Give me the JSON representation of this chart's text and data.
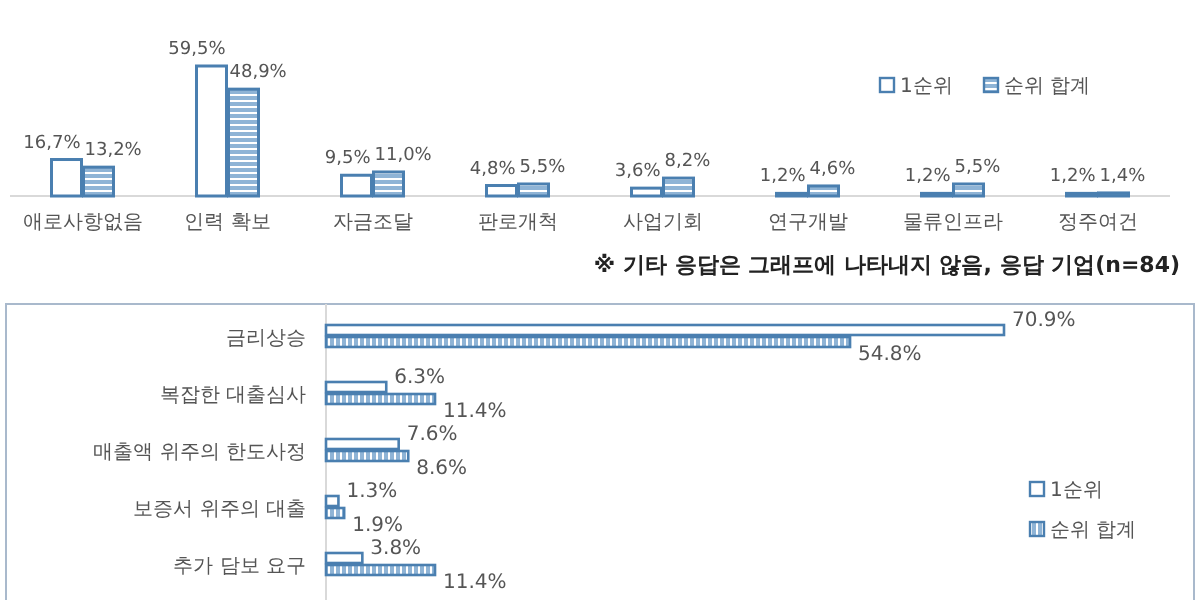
{
  "chart_data": [
    {
      "type": "bar",
      "categories": [
        "애로사항없음",
        "인력 확보",
        "자금조달",
        "판로개척",
        "사업기회",
        "연구개발",
        "물류인프라",
        "정주여건"
      ],
      "legend": "top right",
      "series": [
        {
          "name": "1순위",
          "color": "#ffffff",
          "values": [
            16.7,
            59.5,
            9.5,
            4.8,
            3.6,
            1.2,
            1.2,
            1.2
          ],
          "value_labels": [
            "16,7%",
            "59,5%",
            "9,5%",
            "4,8%",
            "3,6%",
            "1,2%",
            "1,2%",
            "1,2%"
          ]
        },
        {
          "name": "순위 합계",
          "color": "#4a7fb0",
          "values": [
            13.2,
            48.9,
            11.0,
            5.5,
            8.2,
            4.6,
            5.5,
            1.4
          ],
          "value_labels": [
            "13,2%",
            "48,9%",
            "11,0%",
            "5,5%",
            "8,2%",
            "4,6%",
            "5,5%",
            "1,4%"
          ]
        }
      ],
      "annotations": [
        "※ 기타 응답은 그래프에 나타내지 않음, 응답 기업(n=84)"
      ]
    },
    {
      "type": "bar",
      "orientation": "horizontal",
      "categories": [
        "금리상승",
        "복잡한 대출심사",
        "매출액 위주의 한도사정",
        "보증서 위주의 대출",
        "추가 담보 요구"
      ],
      "legend": "right",
      "series": [
        {
          "name": "1순위",
          "color": "#ffffff",
          "values": [
            70.9,
            6.3,
            7.6,
            1.3,
            3.8
          ],
          "value_labels": [
            "70.9%",
            "6.3%",
            "7.6%",
            "1.3%",
            "3.8%"
          ]
        },
        {
          "name": "순위 합계",
          "color": "#4a7fb0",
          "values": [
            54.8,
            11.4,
            8.6,
            1.9,
            11.4
          ],
          "value_labels": [
            "54.8%",
            "11.4%",
            "8.6%",
            "1.9%",
            "11.4%"
          ]
        }
      ]
    }
  ]
}
